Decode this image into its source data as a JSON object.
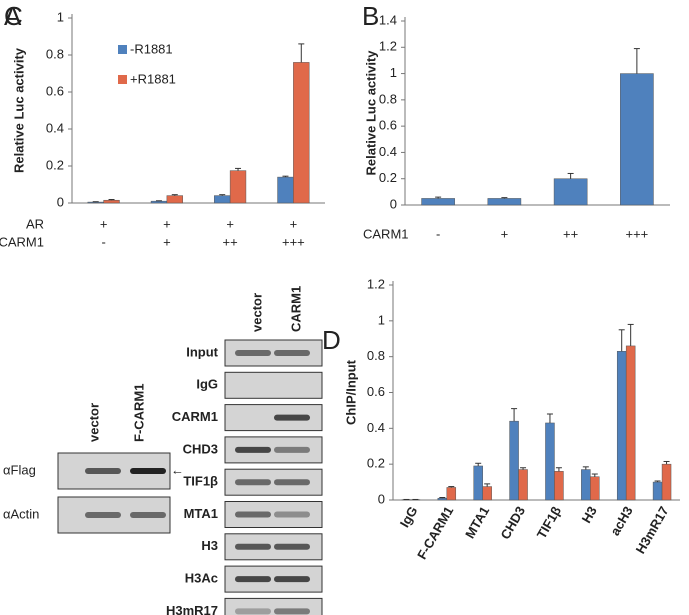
{
  "chart_data": [
    {
      "type": "bar",
      "label": "A",
      "y_label": "Relative Luc activity",
      "category_rows": [
        {
          "label": "AR",
          "values": [
            "+",
            "+",
            "+",
            "+"
          ]
        },
        {
          "label": "CARM1",
          "values": [
            "-",
            "+",
            "++",
            "+++"
          ]
        }
      ],
      "series": [
        {
          "name": "-R1881",
          "color": "#4f81bd",
          "values": [
            0.005,
            0.01,
            0.04,
            0.14
          ],
          "errors": [
            0.002,
            0.002,
            0.005,
            0.005
          ]
        },
        {
          "name": "+R1881",
          "color": "#e0694a",
          "values": [
            0.015,
            0.04,
            0.175,
            0.76
          ],
          "errors": [
            0.004,
            0.005,
            0.012,
            0.1
          ]
        }
      ],
      "ylim": [
        0,
        1
      ],
      "yticks": [
        0,
        0.2,
        0.4,
        0.6,
        0.8,
        1
      ],
      "legend": "upper left"
    },
    {
      "type": "bar",
      "label": "B",
      "y_label": "Relative Luc activity",
      "category_rows": [
        {
          "label": "CARM1",
          "values": [
            "-",
            "+",
            "++",
            "+++"
          ]
        }
      ],
      "series": [
        {
          "color": "#4f81bd",
          "values": [
            0.05,
            0.05,
            0.2,
            1.0
          ],
          "errors": [
            0.01,
            0.006,
            0.04,
            0.19
          ]
        }
      ],
      "ylim": [
        0,
        1.4
      ],
      "yticks": [
        0,
        0.2,
        0.4,
        0.6,
        0.8,
        1,
        1.2,
        1.4
      ]
    },
    {
      "type": "bar",
      "label": "D",
      "y_label": "ChIP/Input",
      "categories": [
        "IgG",
        "F-CARM1",
        "MTA1",
        "CHD3",
        "TIF1β",
        "H3",
        "acH3",
        "H3mR17"
      ],
      "series": [
        {
          "color": "#4f81bd",
          "values": [
            0.002,
            0.01,
            0.19,
            0.44,
            0.43,
            0.17,
            0.83,
            0.1
          ],
          "errors": [
            0.001,
            0.004,
            0.015,
            0.07,
            0.05,
            0.015,
            0.12,
            0.006
          ]
        },
        {
          "color": "#e0694a",
          "values": [
            0.002,
            0.07,
            0.075,
            0.17,
            0.16,
            0.13,
            0.86,
            0.2
          ],
          "errors": [
            0.001,
            0.005,
            0.015,
            0.01,
            0.02,
            0.015,
            0.12,
            0.015
          ]
        }
      ],
      "ylim": [
        0,
        1.2
      ],
      "yticks": [
        0,
        0.2,
        0.4,
        0.6,
        0.8,
        1,
        1.2
      ]
    }
  ],
  "blot_panel": {
    "label": "C",
    "left": {
      "lanes": [
        "vector",
        "F-CARM1"
      ],
      "rows": [
        "αFlag",
        "αActin"
      ]
    },
    "right": {
      "lanes": [
        "vector",
        "CARM1"
      ],
      "rows": [
        "Input",
        "IgG",
        "CARM1",
        "CHD3",
        "TIF1β",
        "MTA1",
        "H3",
        "H3Ac",
        "H3mR17"
      ]
    }
  }
}
